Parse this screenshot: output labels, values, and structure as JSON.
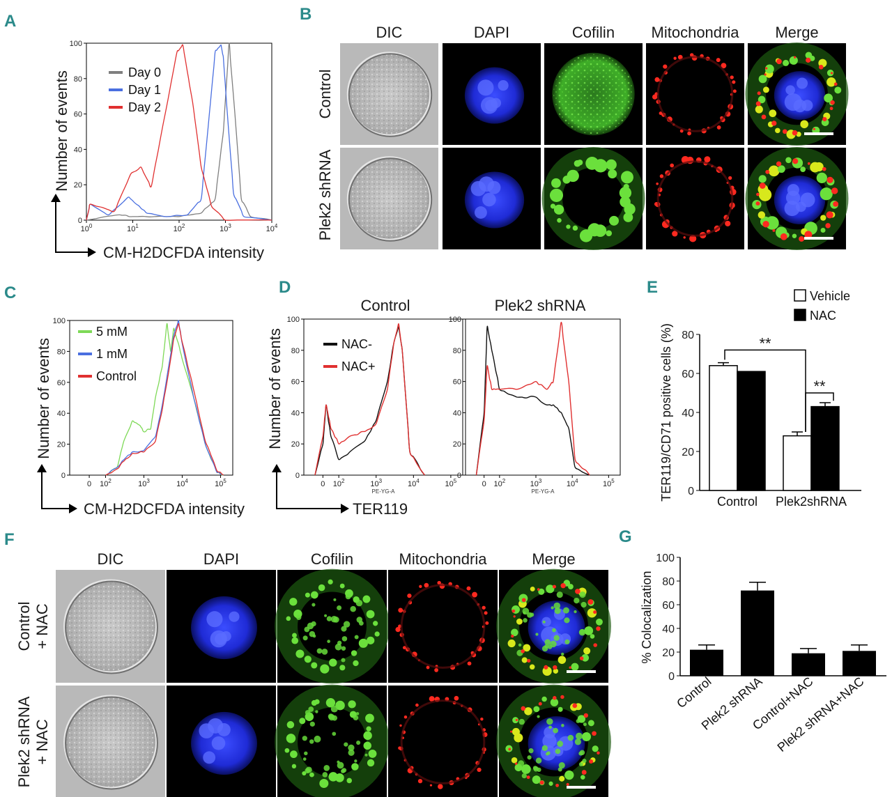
{
  "panels": {
    "A": {
      "letter": "A",
      "ylabel": "Number of events",
      "xlabel": "CM-H2DCFDA intensity",
      "yticks": [
        "0",
        "20",
        "40",
        "60",
        "80",
        "100"
      ],
      "xticks": [
        {
          "b": "10",
          "e": "0"
        },
        {
          "b": "10",
          "e": "1"
        },
        {
          "b": "10",
          "e": "2"
        },
        {
          "b": "10",
          "e": "3"
        },
        {
          "b": "10",
          "e": "4"
        }
      ],
      "legend": [
        {
          "label": "Day 0",
          "color": "#7f7f7f"
        },
        {
          "label": "Day 1",
          "color": "#4a6fe0"
        },
        {
          "label": "Day 2",
          "color": "#e03030"
        }
      ]
    },
    "B": {
      "letter": "B",
      "columns": [
        "DIC",
        "DAPI",
        "Cofilin",
        "Mitochondria",
        "Merge"
      ],
      "rows": [
        "Control",
        "Plek2 shRNA"
      ]
    },
    "C": {
      "letter": "C",
      "ylabel": "Number of events",
      "xlabel": "CM-H2DCFDA intensity",
      "yticks": [
        "0",
        "20",
        "40",
        "60",
        "80",
        "100"
      ],
      "xticks": [
        {
          "b": "0",
          "e": ""
        },
        {
          "b": "10",
          "e": "2"
        },
        {
          "b": "10",
          "e": "3"
        },
        {
          "b": "10",
          "e": "4"
        },
        {
          "b": "10",
          "e": "5"
        }
      ],
      "legend": [
        {
          "label": "5 mM",
          "color": "#7ed957"
        },
        {
          "label": "1 mM",
          "color": "#4a6fe0"
        },
        {
          "label": "Control",
          "color": "#e03030"
        }
      ]
    },
    "D": {
      "letter": "D",
      "titles": [
        "Control",
        "Plek2 shRNA"
      ],
      "ylabel": "Number of events",
      "xlabel": "TER119",
      "sublabel": "PE-YG-A",
      "yticks": [
        "0",
        "20",
        "40",
        "60",
        "80",
        "100"
      ],
      "xticks": [
        {
          "b": "0",
          "e": ""
        },
        {
          "b": "10",
          "e": "2"
        },
        {
          "b": "10",
          "e": "3"
        },
        {
          "b": "10",
          "e": "4"
        },
        {
          "b": "10",
          "e": "5"
        }
      ],
      "legend": [
        {
          "label": "NAC-",
          "color": "#111111"
        },
        {
          "label": "NAC+",
          "color": "#e03030"
        }
      ]
    },
    "E": {
      "letter": "E",
      "legend": [
        {
          "label": "Vehicle",
          "fill": "#ffffff"
        },
        {
          "label": "NAC",
          "fill": "#000000"
        }
      ],
      "sig": [
        "**",
        "**"
      ]
    },
    "F": {
      "letter": "F",
      "columns": [
        "DIC",
        "DAPI",
        "Cofilin",
        "Mitochondria",
        "Merge"
      ],
      "rows": [
        [
          "Control",
          "+ NAC"
        ],
        [
          "Plek2 shRNA",
          "+ NAC"
        ]
      ]
    },
    "G": {
      "letter": "G"
    }
  },
  "chart_data": [
    {
      "panel": "A",
      "type": "line",
      "xlabel": "CM-H2DCFDA intensity",
      "ylabel": "Number of events",
      "xscale": "log",
      "xlim": [
        1,
        10000
      ],
      "ylim": [
        0,
        100
      ],
      "legend_position": "top-left",
      "series": [
        {
          "name": "Day 0",
          "color": "#7f7f7f",
          "x": [
            1,
            5,
            10,
            30,
            100,
            300,
            600,
            900,
            1200,
            1600,
            2200,
            3500,
            10000
          ],
          "y": [
            0,
            3,
            2,
            2,
            2,
            4,
            12,
            50,
            100,
            60,
            12,
            2,
            0
          ]
        },
        {
          "name": "Day 1",
          "color": "#4a6fe0",
          "x": [
            1,
            1.2,
            3,
            8,
            12,
            20,
            50,
            150,
            300,
            450,
            600,
            800,
            900,
            1100,
            1500,
            2500,
            10000
          ],
          "y": [
            0,
            9,
            3,
            13,
            9,
            4,
            2,
            3,
            12,
            60,
            95,
            99,
            92,
            60,
            15,
            2,
            0
          ]
        },
        {
          "name": "Day 2",
          "color": "#e03030",
          "x": [
            1,
            1.2,
            4,
            9,
            15,
            25,
            50,
            90,
            120,
            160,
            200,
            300,
            500,
            1000,
            10000
          ],
          "y": [
            0,
            9,
            5,
            26,
            30,
            19,
            60,
            95,
            99,
            80,
            65,
            30,
            8,
            0,
            0
          ]
        }
      ]
    },
    {
      "panel": "C",
      "type": "line",
      "xlabel": "CM-H2DCFDA intensity",
      "ylabel": "Number of events",
      "xscale": "biexponential",
      "xlim": [
        -100,
        200000
      ],
      "ylim": [
        0,
        100
      ],
      "legend_position": "top-left",
      "series": [
        {
          "name": "5 mM",
          "color": "#7ed957",
          "x": [
            100,
            200,
            300,
            500,
            800,
            1000,
            1500,
            2000,
            3000,
            4000,
            5000,
            6000,
            8000,
            10000,
            20000,
            40000,
            80000,
            120000
          ],
          "y": [
            0,
            5,
            22,
            35,
            32,
            28,
            30,
            50,
            70,
            98,
            80,
            95,
            85,
            75,
            50,
            20,
            2,
            0
          ]
        },
        {
          "name": "1 mM",
          "color": "#4a6fe0",
          "x": [
            100,
            200,
            300,
            500,
            1000,
            2000,
            3000,
            5000,
            6000,
            8000,
            10000,
            20000,
            40000,
            80000,
            120000
          ],
          "y": [
            0,
            5,
            10,
            15,
            16,
            25,
            45,
            78,
            90,
            100,
            85,
            50,
            20,
            2,
            0
          ]
        },
        {
          "name": "Control",
          "color": "#e03030",
          "x": [
            100,
            200,
            300,
            500,
            1000,
            2000,
            3000,
            5000,
            6000,
            8000,
            10000,
            20000,
            40000,
            80000,
            120000
          ],
          "y": [
            0,
            4,
            9,
            14,
            15,
            22,
            42,
            75,
            88,
            98,
            86,
            55,
            22,
            3,
            0
          ]
        }
      ]
    },
    {
      "panel": "D-left",
      "type": "line",
      "title": "Control",
      "xlabel": "TER119",
      "ylabel": "Number of events",
      "ylim": [
        0,
        100
      ],
      "series": [
        {
          "name": "NAC-",
          "color": "#111111",
          "x": [
            -50,
            0,
            20,
            50,
            100,
            200,
            500,
            1000,
            2000,
            3000,
            4000,
            5000,
            8000,
            20000
          ],
          "y": [
            0,
            20,
            45,
            25,
            10,
            15,
            22,
            35,
            60,
            85,
            95,
            80,
            15,
            0
          ]
        },
        {
          "name": "NAC+",
          "color": "#e03030",
          "x": [
            -50,
            0,
            20,
            50,
            100,
            200,
            500,
            1000,
            2000,
            3000,
            4000,
            5000,
            8000,
            20000
          ],
          "y": [
            0,
            25,
            45,
            30,
            20,
            25,
            28,
            33,
            55,
            85,
            97,
            80,
            15,
            0
          ]
        }
      ]
    },
    {
      "panel": "D-right",
      "type": "line",
      "title": "Plek2 shRNA",
      "xlabel": "TER119",
      "ylabel": "Number of events",
      "ylim": [
        0,
        100
      ],
      "series": [
        {
          "name": "NAC-",
          "color": "#111111",
          "x": [
            -50,
            0,
            20,
            50,
            100,
            300,
            1000,
            2000,
            3000,
            5000,
            8000,
            12000,
            30000
          ],
          "y": [
            0,
            40,
            95,
            80,
            55,
            50,
            50,
            45,
            45,
            40,
            30,
            5,
            0
          ]
        },
        {
          "name": "NAC+",
          "color": "#e03030",
          "x": [
            -50,
            0,
            20,
            50,
            100,
            300,
            1000,
            2000,
            3000,
            5000,
            8000,
            12000,
            30000
          ],
          "y": [
            0,
            35,
            70,
            55,
            55,
            55,
            60,
            55,
            60,
            98,
            60,
            10,
            0
          ]
        }
      ]
    },
    {
      "panel": "E",
      "type": "bar",
      "ylabel": "TER119/CD71 positive cells (%)",
      "categories": [
        "Control",
        "Plek2shRNA"
      ],
      "ylim": [
        0,
        80
      ],
      "yticks": [
        "0",
        "20",
        "40",
        "60",
        "80"
      ],
      "series": [
        {
          "name": "Vehicle",
          "values": [
            64,
            28
          ],
          "errors": [
            1.5,
            2
          ]
        },
        {
          "name": "NAC",
          "values": [
            61,
            43
          ],
          "errors": [
            0,
            2
          ]
        }
      ]
    },
    {
      "panel": "G",
      "type": "bar",
      "ylabel": "% Colocalization",
      "categories": [
        "Control",
        "Plek2 shRNA",
        "Control+NAC",
        "Plek2 shRNA+NAC"
      ],
      "ylim": [
        0,
        100
      ],
      "yticks": [
        "0",
        "20",
        "40",
        "60",
        "80",
        "100"
      ],
      "values": [
        22,
        72,
        19,
        21
      ],
      "errors": [
        4,
        7,
        4,
        5
      ]
    }
  ]
}
